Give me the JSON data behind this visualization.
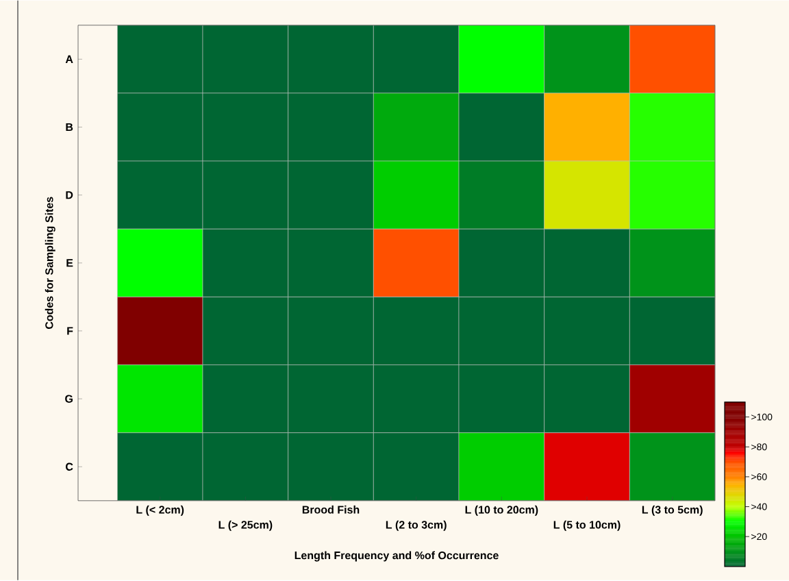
{
  "chart_data": {
    "type": "heatmap",
    "xlabel": "Length Frequency and %of Occurrence",
    "ylabel": "Codes for Sampling Sites",
    "categories": [
      "L (< 2cm)",
      "L (> 25cm)",
      "Brood Fish",
      "L (2 to 3cm)",
      "L (10 to 20cm)",
      "L (5 to 10cm)",
      "L (3 to 5cm)"
    ],
    "y_categories": [
      "A",
      "B",
      "D",
      "E",
      "F",
      "G",
      "C"
    ],
    "cells": [
      [
        0,
        0,
        0,
        0,
        30,
        10,
        70
      ],
      [
        0,
        0,
        0,
        15,
        0,
        55,
        32
      ],
      [
        0,
        0,
        0,
        22,
        5,
        45,
        32
      ],
      [
        30,
        0,
        0,
        70,
        0,
        0,
        10
      ],
      [
        105,
        0,
        0,
        0,
        0,
        0,
        0
      ],
      [
        26,
        0,
        0,
        0,
        0,
        0,
        90
      ],
      [
        0,
        0,
        0,
        0,
        22,
        78,
        10
      ]
    ],
    "clim": [
      0,
      110
    ],
    "cticks": [
      {
        "value": 20,
        "label": ">20"
      },
      {
        "value": 40,
        "label": ">40"
      },
      {
        "value": 60,
        "label": ">60"
      },
      {
        "value": 80,
        "label": ">80"
      },
      {
        "value": 100,
        "label": ">100"
      }
    ]
  }
}
